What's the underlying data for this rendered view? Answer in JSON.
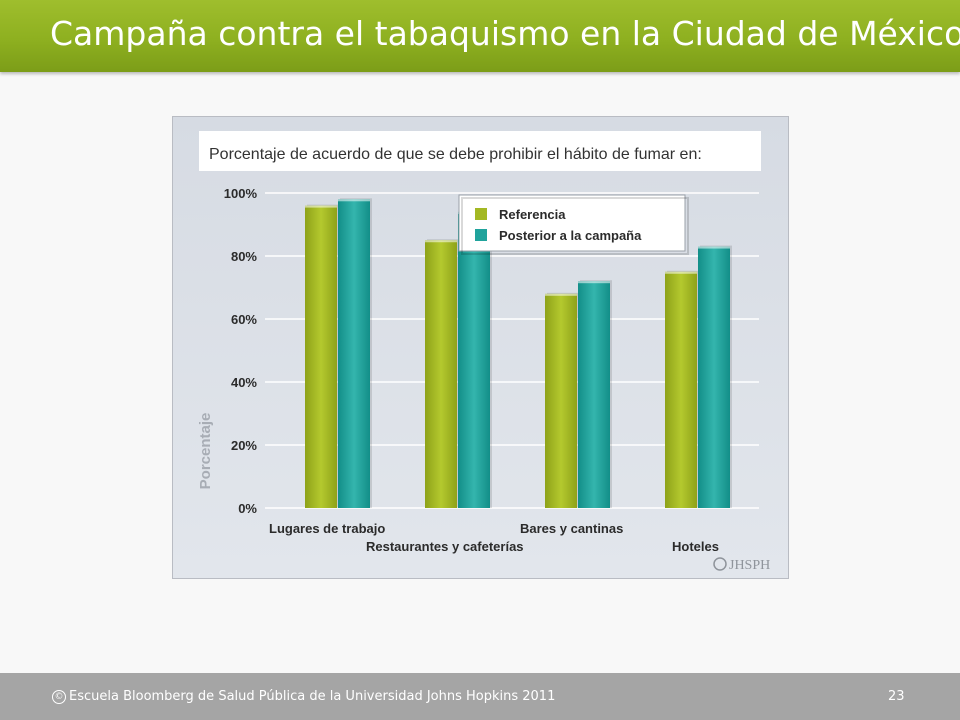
{
  "slide": {
    "title": "Campaña contra el tabaquismo en la Ciudad de México",
    "footer_text": "Escuela Bloomberg de Salud Pública de la Universidad Johns Hopkins 2011",
    "page_number": "23",
    "copyright_icon": "copyright-icon"
  },
  "colors": {
    "title_bar": "#8eb020",
    "footer_bar": "#a5a5a5",
    "referencia": "#a3b823",
    "posterior": "#20a39c"
  },
  "chart_data": {
    "type": "bar",
    "title": "Porcentaje de acuerdo de que se debe prohibir el hábito de fumar en:",
    "ylabel": "Porcentaje",
    "xlabel": "",
    "ylim": [
      0,
      100
    ],
    "yticks": [
      "0%",
      "20%",
      "40%",
      "60%",
      "80%",
      "100%"
    ],
    "categories": [
      "Lugares de trabajo",
      "Restaurantes y cafeterías",
      "Bares y cantinas",
      "Hoteles"
    ],
    "series": [
      {
        "name": "Referencia",
        "values": [
          96,
          85,
          68,
          75
        ]
      },
      {
        "name": "Posterior a la campaña",
        "values": [
          98,
          94,
          72,
          83
        ]
      }
    ],
    "legend": "top-right",
    "grid": true,
    "watermark": "JHSPH"
  }
}
